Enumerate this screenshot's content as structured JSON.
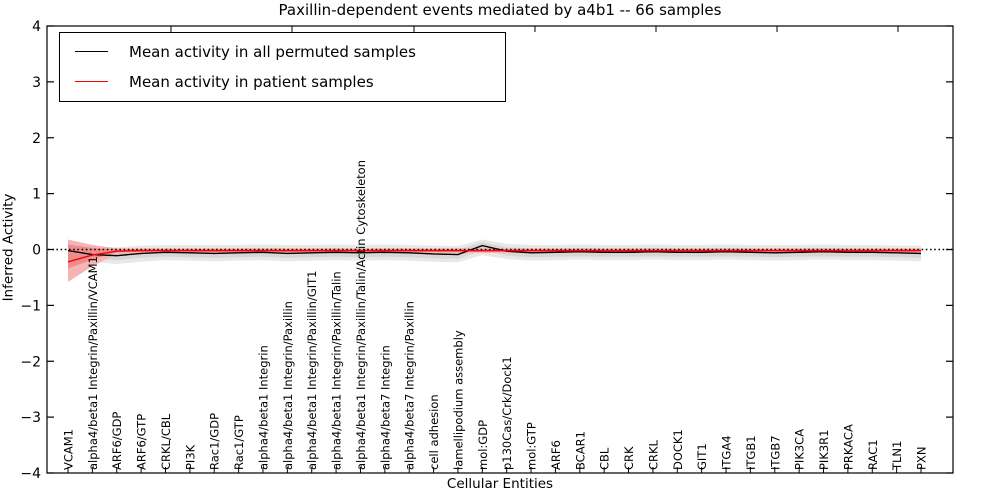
{
  "chart_data": {
    "type": "line",
    "title": "Paxillin-dependent events mediated by a4b1 -- 66 samples",
    "xlabel": "Cellular Entities",
    "ylabel": "Inferred Activity",
    "ylim": [
      -4,
      4
    ],
    "yticks": [
      -4,
      -3,
      -2,
      -1,
      0,
      1,
      2,
      3,
      4
    ],
    "grid": false,
    "legend_position": "upper left",
    "zero_line": {
      "y": 0,
      "style": "dotted",
      "color": "#000000"
    },
    "categories": [
      "VCAM1",
      "alpha4/beta1 Integrin/Paxillin/VCAM1",
      "ARF6/GDP",
      "ARF6/GTP",
      "CRKL/CBL",
      "PI3K",
      "Rac1/GDP",
      "Rac1/GTP",
      "alpha4/beta1 Integrin",
      "alpha4/beta1 Integrin/Paxillin",
      "alpha4/beta1 Integrin/Paxillin/GIT1",
      "alpha4/beta1 Integrin/Paxillin/Talin",
      "alpha4/beta1 Integrin/Paxillin/Talin/Actin Cytoskeleton",
      "alpha4/beta7 Integrin",
      "alpha4/beta7 Integrin/Paxillin",
      "cell adhesion",
      "lamellipodium assembly",
      "mol:GDP",
      "p130Cas/Crk/Dock1",
      "mol:GTP",
      "ARF6",
      "BCAR1",
      "CBL",
      "CRK",
      "CRKL",
      "DOCK1",
      "GIT1",
      "ITGA4",
      "ITGB1",
      "ITGB7",
      "PIK3CA",
      "PIK3R1",
      "PRKACA",
      "RAC1",
      "TLN1",
      "PXN"
    ],
    "series": [
      {
        "name": "Mean activity in all permuted samples",
        "color": "#000000",
        "values": [
          -0.02,
          -0.09,
          -0.11,
          -0.07,
          -0.05,
          -0.06,
          -0.07,
          -0.06,
          -0.05,
          -0.07,
          -0.06,
          -0.05,
          -0.06,
          -0.05,
          -0.06,
          -0.08,
          -0.09,
          0.07,
          -0.03,
          -0.06,
          -0.05,
          -0.04,
          -0.05,
          -0.05,
          -0.04,
          -0.05,
          -0.05,
          -0.04,
          -0.05,
          -0.06,
          -0.05,
          -0.04,
          -0.05,
          -0.05,
          -0.06,
          -0.07
        ],
        "band_outer": {
          "color": "#e8e8e8",
          "hi": [
            0.07,
            0.05,
            0.04,
            0.07,
            0.08,
            0.08,
            0.08,
            0.08,
            0.09,
            0.08,
            0.08,
            0.09,
            0.08,
            0.09,
            0.08,
            0.07,
            0.06,
            0.18,
            0.1,
            0.08,
            0.08,
            0.09,
            0.08,
            0.08,
            0.09,
            0.08,
            0.08,
            0.09,
            0.08,
            0.08,
            0.08,
            0.09,
            0.08,
            0.08,
            0.07,
            0.07
          ],
          "lo": [
            -0.14,
            -0.22,
            -0.26,
            -0.22,
            -0.19,
            -0.2,
            -0.21,
            -0.2,
            -0.19,
            -0.21,
            -0.2,
            -0.19,
            -0.2,
            -0.19,
            -0.2,
            -0.22,
            -0.23,
            -0.1,
            -0.17,
            -0.2,
            -0.19,
            -0.18,
            -0.19,
            -0.19,
            -0.18,
            -0.19,
            -0.19,
            -0.18,
            -0.19,
            -0.2,
            -0.19,
            -0.18,
            -0.19,
            -0.19,
            -0.2,
            -0.21
          ]
        },
        "band_inner": {
          "color": "#d7d7d7",
          "hi": [
            0.02,
            0.0,
            -0.02,
            0.01,
            0.02,
            0.02,
            0.02,
            0.02,
            0.03,
            0.02,
            0.02,
            0.03,
            0.02,
            0.03,
            0.02,
            0.01,
            0.0,
            0.13,
            0.04,
            0.02,
            0.02,
            0.03,
            0.02,
            0.02,
            0.03,
            0.02,
            0.02,
            0.03,
            0.02,
            0.02,
            0.02,
            0.03,
            0.02,
            0.02,
            0.01,
            0.01
          ],
          "lo": [
            -0.08,
            -0.16,
            -0.19,
            -0.15,
            -0.13,
            -0.14,
            -0.15,
            -0.14,
            -0.13,
            -0.15,
            -0.14,
            -0.13,
            -0.14,
            -0.13,
            -0.14,
            -0.16,
            -0.17,
            -0.02,
            -0.11,
            -0.14,
            -0.13,
            -0.12,
            -0.13,
            -0.13,
            -0.12,
            -0.13,
            -0.13,
            -0.12,
            -0.13,
            -0.14,
            -0.13,
            -0.12,
            -0.13,
            -0.13,
            -0.14,
            -0.15
          ]
        }
      },
      {
        "name": "Mean activity in patient samples",
        "color": "#ff0000",
        "values": [
          -0.22,
          -0.1,
          -0.03,
          -0.02,
          -0.02,
          -0.02,
          -0.02,
          -0.02,
          -0.02,
          -0.02,
          -0.02,
          -0.02,
          -0.02,
          -0.02,
          -0.02,
          -0.02,
          -0.02,
          -0.02,
          -0.02,
          -0.02,
          -0.02,
          -0.02,
          -0.02,
          -0.02,
          -0.02,
          -0.02,
          -0.02,
          -0.02,
          -0.02,
          -0.02,
          -0.02,
          -0.02,
          -0.02,
          -0.02,
          -0.02,
          -0.02
        ],
        "band_outer": {
          "color": "#f6b4b4",
          "hi": [
            0.18,
            0.08,
            0.02,
            0.02,
            0.02,
            0.02,
            0.02,
            0.02,
            0.02,
            0.02,
            0.02,
            0.02,
            0.02,
            0.02,
            0.02,
            0.02,
            0.02,
            0.02,
            0.02,
            0.02,
            0.02,
            0.02,
            0.02,
            0.02,
            0.02,
            0.02,
            0.02,
            0.02,
            0.02,
            0.02,
            0.02,
            0.02,
            0.02,
            0.02,
            0.02,
            0.02
          ],
          "lo": [
            -0.58,
            -0.3,
            -0.08,
            -0.06,
            -0.06,
            -0.06,
            -0.06,
            -0.06,
            -0.06,
            -0.06,
            -0.06,
            -0.06,
            -0.06,
            -0.06,
            -0.06,
            -0.06,
            -0.06,
            -0.06,
            -0.06,
            -0.06,
            -0.06,
            -0.06,
            -0.06,
            -0.06,
            -0.06,
            -0.06,
            -0.06,
            -0.06,
            -0.06,
            -0.06,
            -0.06,
            -0.06,
            -0.06,
            -0.06,
            -0.06,
            -0.06
          ]
        },
        "band_inner": {
          "color": "#ee8d8d",
          "hi": [
            0.09,
            0.03,
            0.0,
            0.0,
            0.0,
            0.0,
            0.0,
            0.0,
            0.0,
            0.0,
            0.0,
            0.0,
            0.0,
            0.0,
            0.0,
            0.0,
            0.0,
            0.0,
            0.0,
            0.0,
            0.0,
            0.0,
            0.0,
            0.0,
            0.0,
            0.0,
            0.0,
            0.0,
            0.0,
            0.0,
            0.0,
            0.0,
            0.0,
            0.0,
            0.0,
            0.0
          ],
          "lo": [
            -0.34,
            -0.18,
            -0.05,
            -0.04,
            -0.04,
            -0.04,
            -0.04,
            -0.04,
            -0.04,
            -0.04,
            -0.04,
            -0.04,
            -0.04,
            -0.04,
            -0.04,
            -0.04,
            -0.04,
            -0.04,
            -0.04,
            -0.04,
            -0.04,
            -0.04,
            -0.04,
            -0.04,
            -0.04,
            -0.04,
            -0.04,
            -0.04,
            -0.04,
            -0.04,
            -0.04,
            -0.04,
            -0.04,
            -0.04,
            -0.04,
            -0.04
          ]
        }
      }
    ]
  }
}
